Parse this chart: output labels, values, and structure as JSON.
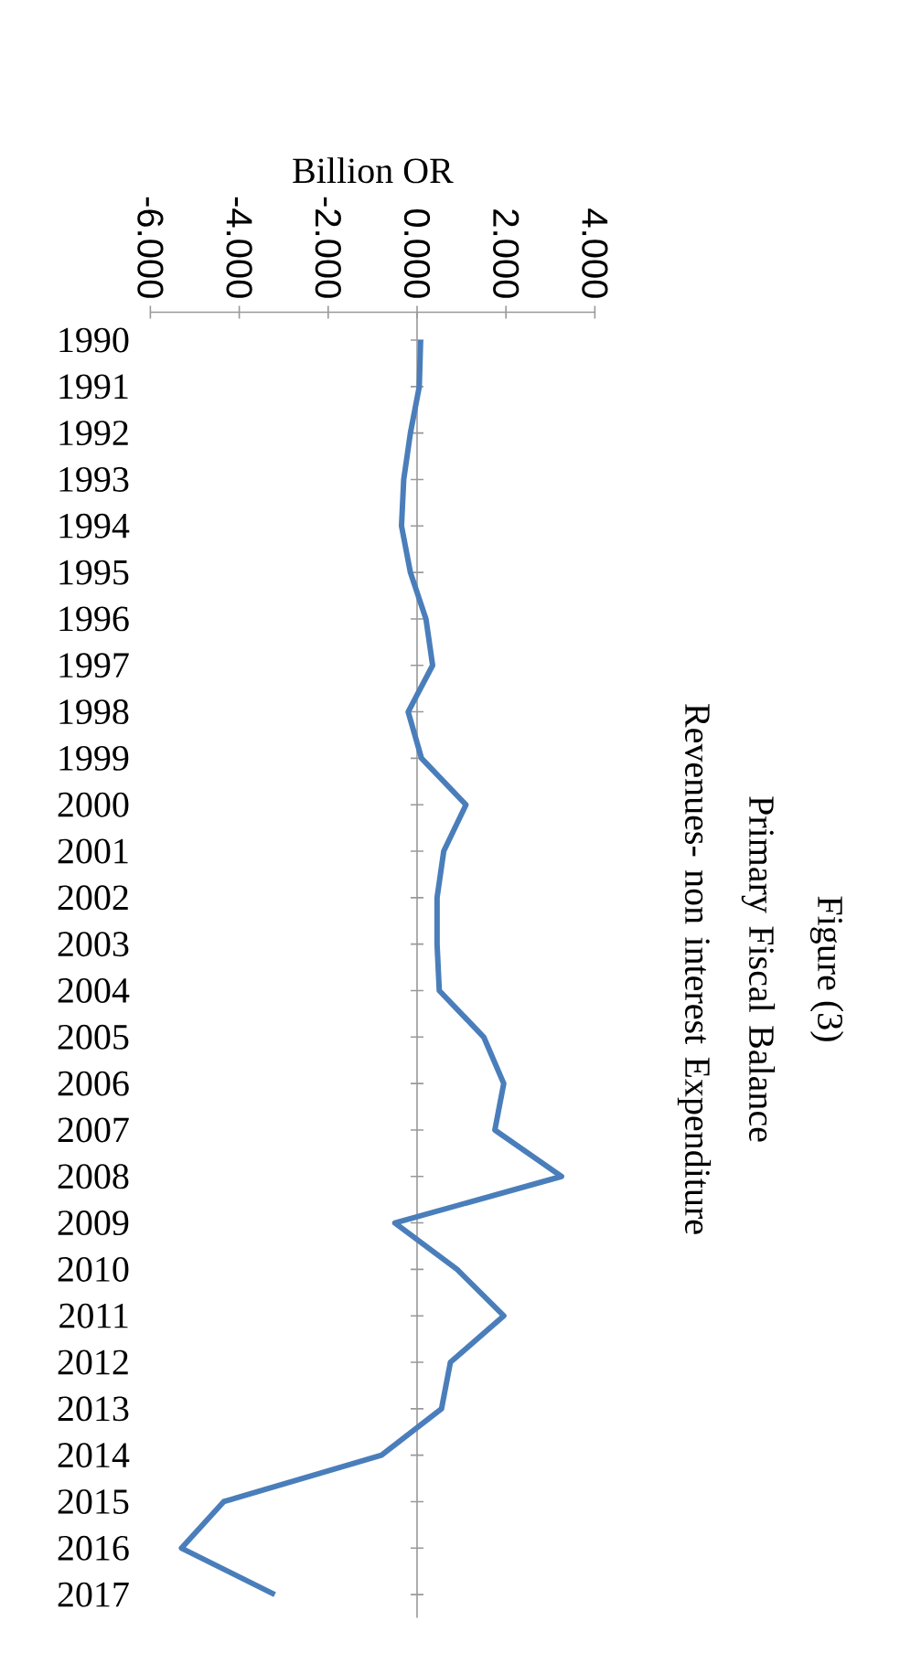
{
  "chart_data": {
    "type": "line",
    "orientation": "horizontal",
    "title": "Figure (3)",
    "subtitle": "Primary Fiscal Balance Revenues- non interest Expenditure",
    "xlabel": "Billion OR",
    "categories": [
      "1990",
      "1991",
      "1992",
      "1993",
      "1994",
      "1995",
      "1996",
      "1997",
      "1998",
      "1999",
      "2000",
      "2001",
      "2002",
      "2003",
      "2004",
      "2005",
      "2006",
      "2007",
      "2008",
      "2009",
      "2010",
      "2011",
      "2012",
      "2013",
      "2014",
      "2015",
      "2016",
      "2017"
    ],
    "values": [
      0.08,
      0.05,
      -0.15,
      -0.3,
      -0.35,
      -0.15,
      0.2,
      0.35,
      -0.2,
      0.1,
      1.1,
      0.6,
      0.45,
      0.45,
      0.5,
      1.5,
      1.95,
      1.75,
      3.25,
      -0.5,
      0.9,
      1.95,
      0.75,
      0.55,
      -0.8,
      -4.35,
      -5.3,
      -3.2
    ],
    "color": "#4a7ebb",
    "marker": "none",
    "line_style": "solid",
    "xlim": [
      -6,
      4
    ],
    "xticks": [
      {
        "value": -6,
        "label": "-6.000"
      },
      {
        "value": -4,
        "label": "-4.000"
      },
      {
        "value": -2,
        "label": "-2.000"
      },
      {
        "value": 0,
        "label": "0.000"
      },
      {
        "value": 2,
        "label": "2.000"
      },
      {
        "value": 4,
        "label": "4.000"
      }
    ]
  }
}
